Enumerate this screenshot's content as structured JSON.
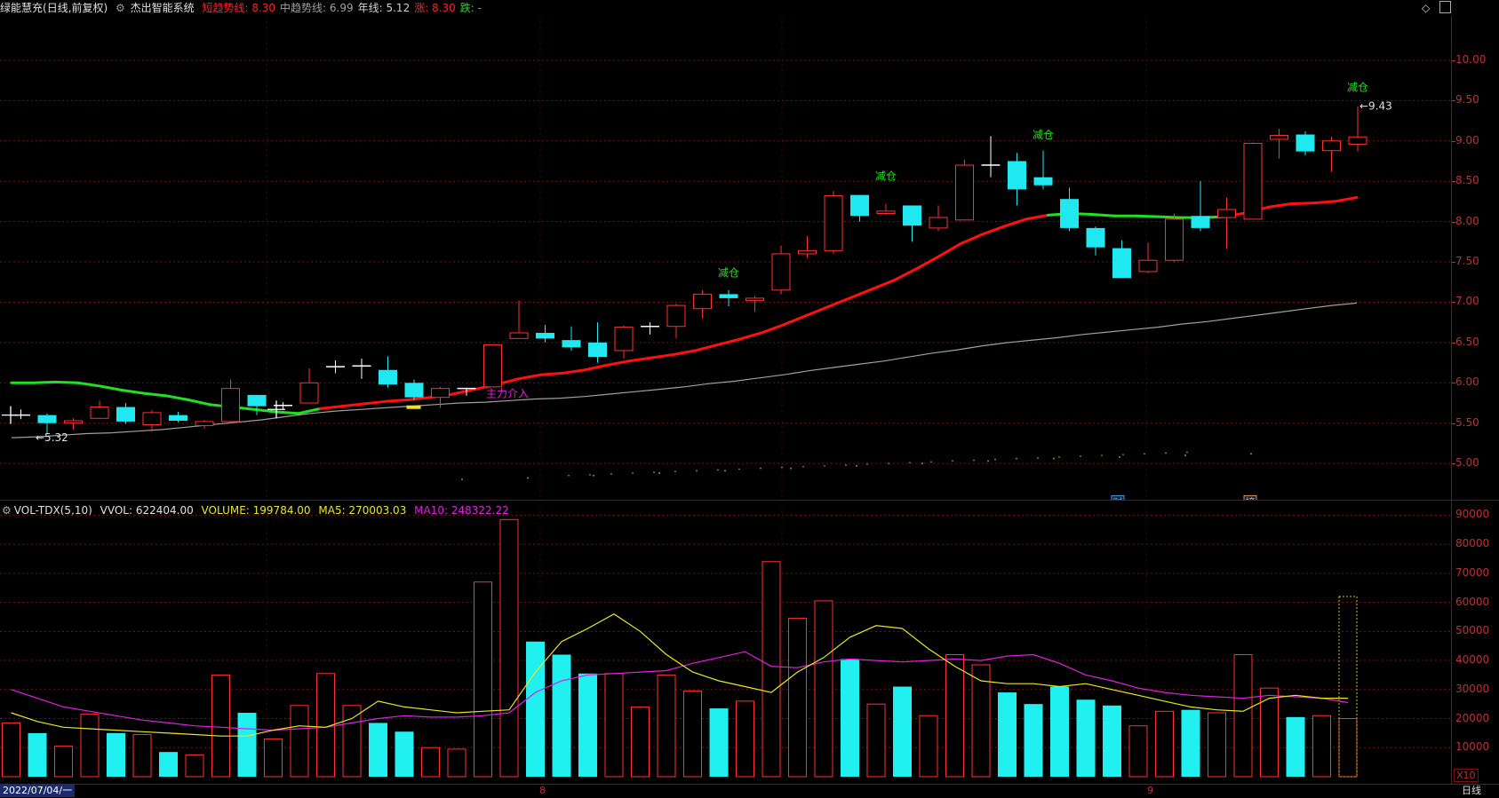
{
  "header": {
    "stock_name": "绿能慧充",
    "period": "(日线,前复权)",
    "indicator_name": "杰出智能系统",
    "items": [
      {
        "label": "短趋势线:",
        "value": "8.30",
        "color": "#ff2020"
      },
      {
        "label": "中趋势线:",
        "value": "6.99",
        "color": "#a0a0a0"
      },
      {
        "label": "年线:",
        "value": "5.12",
        "color": "#d0d0d0"
      },
      {
        "label": "涨:",
        "value": "8.30",
        "color": "#ff2020"
      },
      {
        "label": "跌:",
        "value": "-",
        "color": "#20e020"
      }
    ]
  },
  "volume_header": {
    "name": "VOL-TDX(5,10)",
    "vvol": "VVOL: 622404.00",
    "volume": "VOLUME: 199784.00",
    "ma5": "MA5: 270003.03",
    "ma10": "MA10: 248322.22"
  },
  "annotations": {
    "low_label": "5.32",
    "high_label": "9.43",
    "main_force": "主力介入",
    "reduce": "减仓",
    "cai": "财",
    "bang": "榜"
  },
  "bottom": {
    "date": "2022/07/04/一",
    "month8": "8",
    "month9": "9",
    "period_btn": "日线",
    "scale_tag": "X10"
  },
  "chart_data": [
    {
      "type": "candlestick",
      "price_axis_ticks": [
        5.0,
        5.5,
        6.0,
        6.5,
        7.0,
        7.5,
        8.0,
        8.5,
        9.0,
        9.5,
        10.0
      ],
      "ylim": [
        4.55,
        10.55
      ],
      "candles": [
        {
          "o": 5.6,
          "h": 5.67,
          "l": 5.55,
          "c": 5.6
        },
        {
          "o": 5.6,
          "h": 5.62,
          "l": 5.37,
          "c": 5.5
        },
        {
          "o": 5.5,
          "h": 5.56,
          "l": 5.42,
          "c": 5.53
        },
        {
          "o": 5.56,
          "h": 5.78,
          "l": 5.55,
          "c": 5.7
        },
        {
          "o": 5.7,
          "h": 5.75,
          "l": 5.49,
          "c": 5.52
        },
        {
          "o": 5.48,
          "h": 5.66,
          "l": 5.4,
          "c": 5.63
        },
        {
          "o": 5.6,
          "h": 5.64,
          "l": 5.51,
          "c": 5.53
        },
        {
          "o": 5.47,
          "h": 5.54,
          "l": 5.43,
          "c": 5.52
        },
        {
          "o": 5.52,
          "h": 6.04,
          "l": 5.5,
          "c": 5.93
        },
        {
          "o": 5.85,
          "h": 5.85,
          "l": 5.6,
          "c": 5.71
        },
        {
          "o": 5.72,
          "h": 5.76,
          "l": 5.66,
          "c": 5.72
        },
        {
          "o": 5.75,
          "h": 6.18,
          "l": 5.75,
          "c": 6.0
        },
        {
          "o": 6.2,
          "h": 6.28,
          "l": 6.12,
          "c": 6.2
        },
        {
          "o": 6.21,
          "h": 6.3,
          "l": 6.05,
          "c": 6.21
        },
        {
          "o": 6.16,
          "h": 6.33,
          "l": 5.94,
          "c": 5.98
        },
        {
          "o": 6.0,
          "h": 6.04,
          "l": 5.78,
          "c": 5.82
        },
        {
          "o": 5.82,
          "h": 5.95,
          "l": 5.69,
          "c": 5.93
        },
        {
          "o": 5.93,
          "h": 5.94,
          "l": 5.84,
          "c": 5.93
        },
        {
          "o": 5.95,
          "h": 6.48,
          "l": 5.95,
          "c": 6.47
        },
        {
          "o": 6.55,
          "h": 7.02,
          "l": 6.55,
          "c": 6.62
        },
        {
          "o": 6.62,
          "h": 6.72,
          "l": 6.5,
          "c": 6.55
        },
        {
          "o": 6.53,
          "h": 6.7,
          "l": 6.4,
          "c": 6.44
        },
        {
          "o": 6.5,
          "h": 6.75,
          "l": 6.25,
          "c": 6.32
        },
        {
          "o": 6.4,
          "h": 6.71,
          "l": 6.3,
          "c": 6.69
        },
        {
          "o": 6.7,
          "h": 6.75,
          "l": 6.6,
          "c": 6.7
        },
        {
          "o": 6.7,
          "h": 6.98,
          "l": 6.55,
          "c": 6.96
        },
        {
          "o": 6.92,
          "h": 7.15,
          "l": 6.8,
          "c": 7.1
        },
        {
          "o": 7.1,
          "h": 7.15,
          "l": 6.95,
          "c": 7.05
        },
        {
          "o": 7.02,
          "h": 7.08,
          "l": 6.88,
          "c": 7.05
        },
        {
          "o": 7.15,
          "h": 7.7,
          "l": 7.1,
          "c": 7.6
        },
        {
          "o": 7.6,
          "h": 7.82,
          "l": 7.55,
          "c": 7.64
        },
        {
          "o": 7.64,
          "h": 8.38,
          "l": 7.6,
          "c": 8.32
        },
        {
          "o": 8.33,
          "h": 8.33,
          "l": 8.0,
          "c": 8.07
        },
        {
          "o": 8.1,
          "h": 8.22,
          "l": 8.08,
          "c": 8.13
        },
        {
          "o": 8.2,
          "h": 8.2,
          "l": 7.75,
          "c": 7.95
        },
        {
          "o": 7.92,
          "h": 8.2,
          "l": 7.88,
          "c": 8.05
        },
        {
          "o": 8.02,
          "h": 8.77,
          "l": 8.02,
          "c": 8.7
        },
        {
          "o": 8.7,
          "h": 9.06,
          "l": 8.55,
          "c": 8.7
        },
        {
          "o": 8.75,
          "h": 8.85,
          "l": 8.2,
          "c": 8.4
        },
        {
          "o": 8.55,
          "h": 8.88,
          "l": 8.4,
          "c": 8.45
        },
        {
          "o": 8.28,
          "h": 8.42,
          "l": 7.88,
          "c": 7.92
        },
        {
          "o": 7.92,
          "h": 7.94,
          "l": 7.58,
          "c": 7.68
        },
        {
          "o": 7.67,
          "h": 7.77,
          "l": 7.3,
          "c": 7.3
        },
        {
          "o": 7.38,
          "h": 7.74,
          "l": 7.36,
          "c": 7.52
        },
        {
          "o": 7.52,
          "h": 8.1,
          "l": 7.5,
          "c": 8.03
        },
        {
          "o": 8.07,
          "h": 8.5,
          "l": 7.88,
          "c": 7.92
        },
        {
          "o": 8.05,
          "h": 8.3,
          "l": 7.66,
          "c": 8.15
        },
        {
          "o": 8.03,
          "h": 8.98,
          "l": 8.03,
          "c": 8.97
        },
        {
          "o": 9.02,
          "h": 9.15,
          "l": 8.78,
          "c": 9.07
        },
        {
          "o": 9.08,
          "h": 9.12,
          "l": 8.82,
          "c": 8.87
        },
        {
          "o": 8.88,
          "h": 9.05,
          "l": 8.62,
          "c": 9.0
        },
        {
          "o": 8.96,
          "h": 9.43,
          "l": 8.87,
          "c": 9.05
        }
      ],
      "short_trend": [
        6.0,
        6.0,
        6.01,
        6.0,
        5.96,
        5.91,
        5.87,
        5.84,
        5.79,
        5.73,
        5.7,
        5.67,
        5.64,
        5.62,
        5.68,
        5.71,
        5.74,
        5.77,
        5.79,
        5.82,
        5.86,
        5.92,
        5.98,
        6.05,
        6.1,
        6.12,
        6.16,
        6.22,
        6.27,
        6.31,
        6.35,
        6.4,
        6.47,
        6.54,
        6.62,
        6.72,
        6.83,
        6.94,
        7.05,
        7.16,
        7.27,
        7.41,
        7.56,
        7.72,
        7.84,
        7.94,
        8.03,
        8.08,
        8.1,
        8.09,
        8.07,
        8.07,
        8.06,
        8.05,
        8.05,
        8.06,
        8.11,
        8.18,
        8.22,
        8.23,
        8.25,
        8.3
      ],
      "mid_trend": [
        5.32,
        5.33,
        5.35,
        5.37,
        5.38,
        5.4,
        5.42,
        5.45,
        5.48,
        5.51,
        5.54,
        5.58,
        5.62,
        5.65,
        5.67,
        5.69,
        5.71,
        5.73,
        5.75,
        5.76,
        5.78,
        5.8,
        5.81,
        5.83,
        5.86,
        5.89,
        5.92,
        5.95,
        5.99,
        6.02,
        6.06,
        6.1,
        6.15,
        6.19,
        6.23,
        6.27,
        6.32,
        6.37,
        6.41,
        6.46,
        6.5,
        6.53,
        6.56,
        6.6,
        6.63,
        6.66,
        6.69,
        6.73,
        6.76,
        6.8,
        6.84,
        6.88,
        6.92,
        6.96,
        6.99
      ],
      "year_line": [
        4.8,
        4.82,
        4.85,
        4.88,
        4.91,
        4.94,
        4.97,
        5.0,
        5.03,
        5.06,
        5.08,
        5.1,
        5.12
      ]
    },
    {
      "type": "bar",
      "volume_axis_ticks": [
        10000,
        20000,
        30000,
        40000,
        50000,
        60000,
        70000,
        80000,
        90000
      ],
      "ylim": [
        0,
        95000
      ],
      "scale_note": "X10",
      "volumes": [
        18500,
        15000,
        10500,
        21500,
        15000,
        14500,
        8500,
        7500,
        35000,
        22000,
        13000,
        24500,
        35500,
        24500,
        18500,
        15500,
        10000,
        9500,
        67000,
        88500,
        46500,
        42000,
        35500,
        35500,
        24000,
        35000,
        29500,
        23500,
        26000,
        74000,
        54500,
        60500,
        40500,
        25000,
        31000,
        21000,
        42000,
        38500,
        29000,
        25000,
        31000,
        26500,
        24500,
        17500,
        22500,
        23000,
        22000,
        42000,
        30500,
        20500,
        21000,
        20000
      ],
      "ma5": [
        22000,
        19000,
        17000,
        16500,
        16000,
        15500,
        15000,
        14500,
        14000,
        14000,
        16000,
        17500,
        17000,
        20000,
        26000,
        24000,
        23000,
        22000,
        22500,
        23000,
        36000,
        46500,
        51000,
        56000,
        50000,
        42000,
        36000,
        33000,
        31000,
        29000,
        36000,
        41000,
        48000,
        52000,
        51000,
        44000,
        38000,
        33000,
        32000,
        32000,
        31000,
        32000,
        30000,
        28000,
        26000,
        24000,
        23000,
        22500,
        27000,
        28000,
        27000,
        27000
      ],
      "ma10": [
        30000,
        27000,
        24000,
        22500,
        21000,
        19500,
        18500,
        17500,
        17000,
        16500,
        16000,
        16500,
        17000,
        18500,
        20000,
        21000,
        20500,
        20500,
        21000,
        22000,
        29000,
        33000,
        35000,
        35500,
        36000,
        36500,
        39000,
        41000,
        43000,
        38000,
        37500,
        39500,
        40500,
        40000,
        39500,
        40000,
        40500,
        40000,
        41500,
        42000,
        39000,
        35000,
        33000,
        30500,
        29000,
        28000,
        27500,
        27000,
        28000,
        27500,
        27000,
        25500
      ]
    }
  ]
}
